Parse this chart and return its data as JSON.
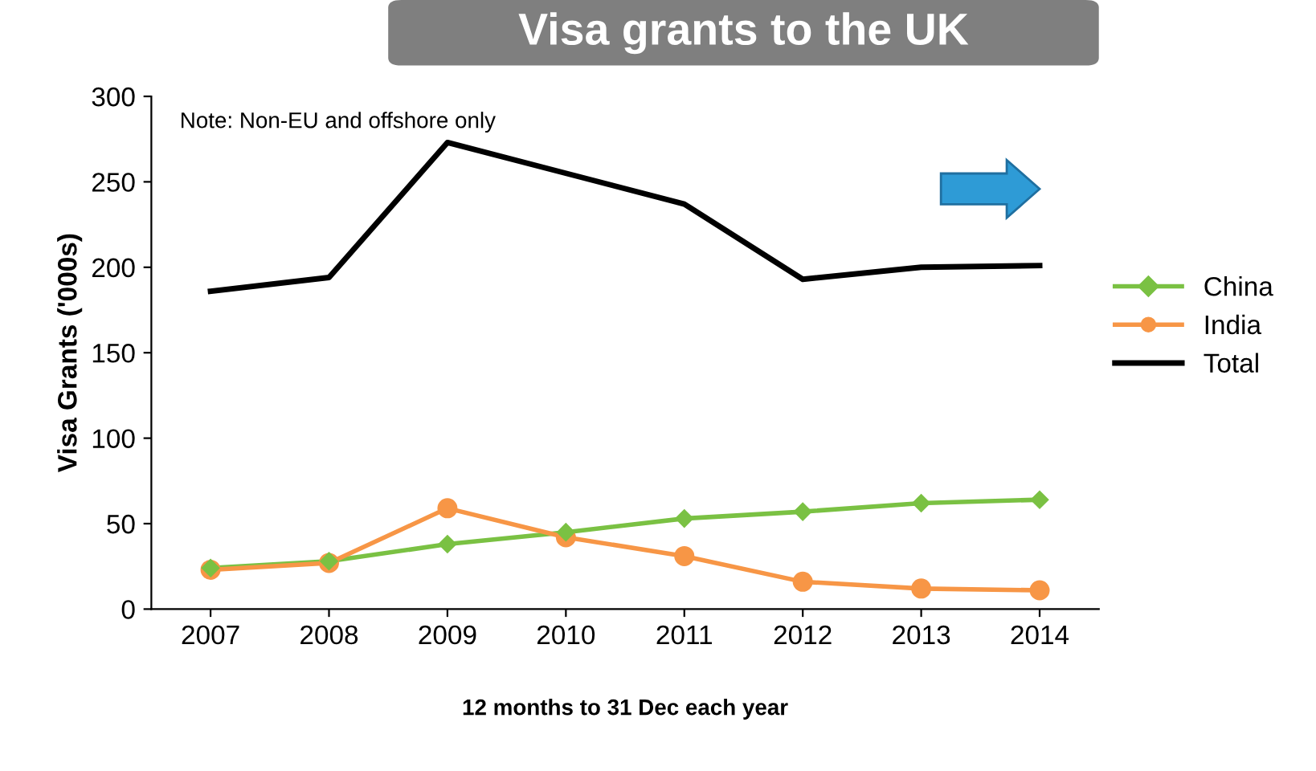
{
  "chart_data": {
    "type": "line",
    "title": "Visa grants to the UK",
    "xlabel": "12 months to 31 Dec each year",
    "ylabel": "Visa Grants ('000s)",
    "annotations": [
      "Note: Non-EU and offshore only"
    ],
    "categories": [
      "2007",
      "2008",
      "2009",
      "2010",
      "2011",
      "2012",
      "2013",
      "2014"
    ],
    "series": [
      {
        "name": "China",
        "color": "#7ac143",
        "marker": "diamond",
        "values": [
          24,
          28,
          38,
          45,
          53,
          57,
          62,
          64
        ]
      },
      {
        "name": "India",
        "color": "#f79646",
        "marker": "circle",
        "values": [
          23,
          27,
          59,
          42,
          31,
          16,
          12,
          11
        ]
      },
      {
        "name": "Total",
        "color": "#000000",
        "marker": "none",
        "values": [
          186,
          194,
          273,
          255,
          237,
          193,
          200,
          201
        ]
      }
    ],
    "ylim": [
      0,
      300
    ],
    "yticks": [
      0,
      50,
      100,
      150,
      200,
      250,
      300
    ],
    "grid": false,
    "legend": "right",
    "line_style": "solid"
  }
}
